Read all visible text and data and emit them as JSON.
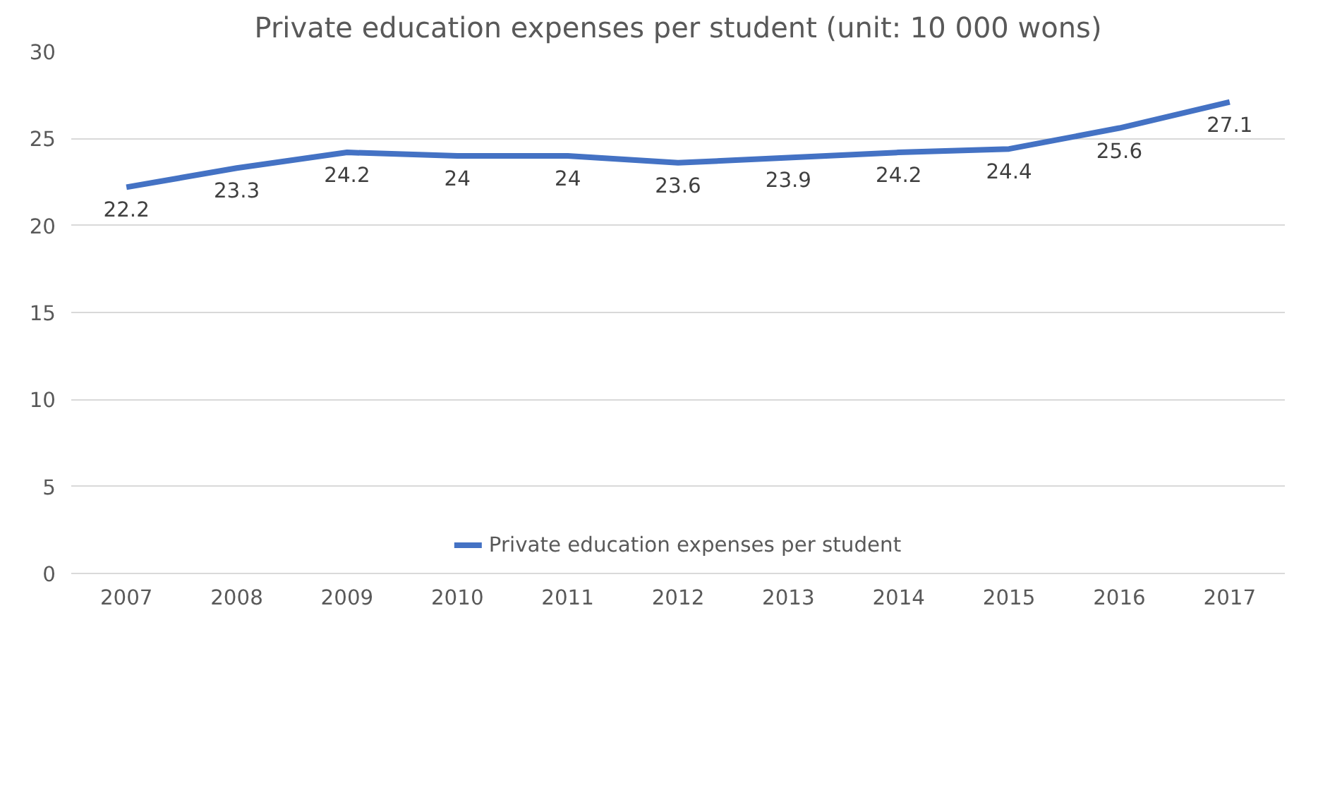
{
  "chart_data": {
    "type": "line",
    "title": "Private education expenses per student (unit: 10 000 wons)",
    "categories": [
      "2007",
      "2008",
      "2009",
      "2010",
      "2011",
      "2012",
      "2013",
      "2014",
      "2015",
      "2016",
      "2017"
    ],
    "series": [
      {
        "name": "Private education expenses per student",
        "color": "#4472c4",
        "values": [
          22.2,
          23.3,
          24.2,
          24,
          24,
          23.6,
          23.9,
          24.2,
          24.4,
          25.6,
          27.1
        ]
      }
    ],
    "ylim": [
      0,
      30
    ],
    "yticks": [
      0,
      5,
      10,
      15,
      20,
      25,
      30
    ],
    "grid": "y",
    "legend": "bottom",
    "data_labels": true,
    "marker": "none",
    "line_style": "solid"
  }
}
